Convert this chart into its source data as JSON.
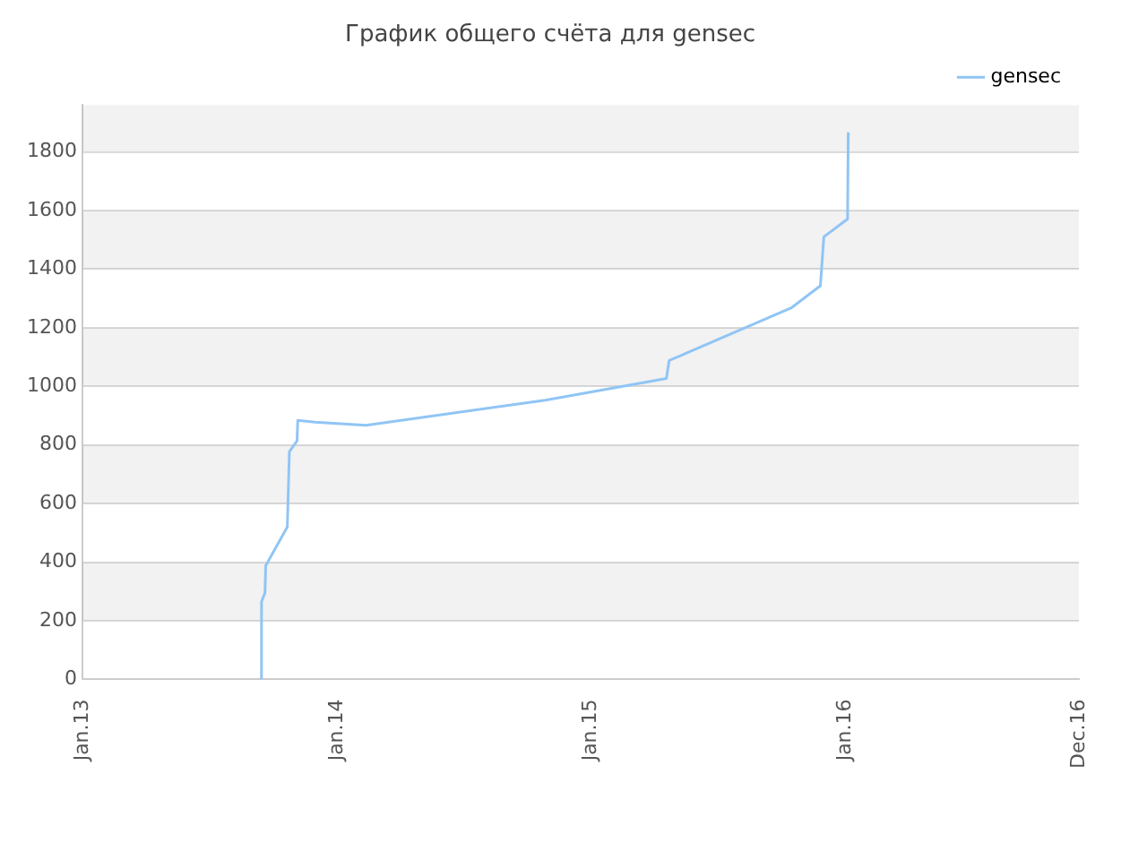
{
  "chart_data": {
    "type": "line",
    "title": "График общего счёта для gensec",
    "xlim": [
      "2013-01-01",
      "2016-12-01"
    ],
    "xticks": [
      {
        "value": "2013-01-01",
        "label": "Jan.13"
      },
      {
        "value": "2014-01-01",
        "label": "Jan.14"
      },
      {
        "value": "2015-01-01",
        "label": "Jan.15"
      },
      {
        "value": "2016-01-01",
        "label": "Jan.16"
      },
      {
        "value": "2016-12-01",
        "label": "Dec.16"
      }
    ],
    "ylim": [
      0,
      1960
    ],
    "yticks": [
      0,
      200,
      400,
      600,
      800,
      1000,
      1200,
      1400,
      1600,
      1800
    ],
    "grid": "y",
    "legend": "top right",
    "marker": "none",
    "line_style": "solid",
    "series": [
      {
        "name": "gensec",
        "color": "#90c5f5",
        "x": [
          "2013-09-13",
          "2013-09-15",
          "2013-09-20",
          "2013-09-21",
          "2013-10-22",
          "2013-10-25",
          "2013-11-05",
          "2013-11-06",
          "2013-12-01",
          "2014-02-12",
          "2014-10-27",
          "2015-04-19",
          "2015-04-23",
          "2015-10-16",
          "2015-11-26",
          "2015-12-01",
          "2016-01-04",
          "2016-01-05"
        ],
        "values": [
          4,
          265,
          296,
          388,
          520,
          777,
          814,
          884,
          878,
          867,
          953,
          1027,
          1088,
          1269,
          1343,
          1510,
          1571,
          1867
        ]
      }
    ]
  }
}
